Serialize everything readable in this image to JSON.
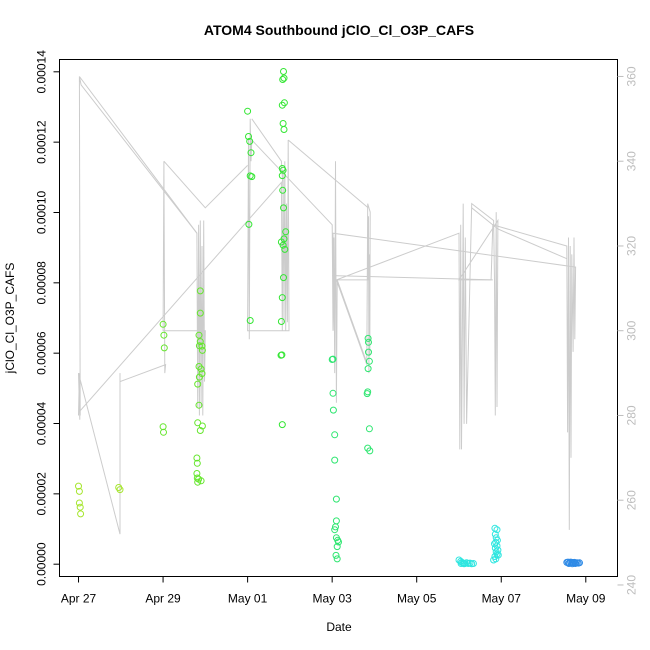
{
  "chart_data": {
    "type": "scatter",
    "title": "ATOM4 Southbound jClO_Cl_O3P_CAFS",
    "xlabel": "Date",
    "ylabel": "jClO_Cl_O3P_CAFS",
    "x_tick_labels": [
      "Apr 27",
      "Apr 29",
      "May 01",
      "May 03",
      "May 05",
      "May 07",
      "May 09"
    ],
    "x_tick_values": [
      0,
      2,
      4,
      6,
      8,
      10,
      12
    ],
    "xlim": [
      -0.45,
      12.75
    ],
    "ylim": [
      -3.5e-06,
      0.0001435
    ],
    "y_tick_labels": [
      "0.00000",
      "0.00002",
      "0.00004",
      "0.00006",
      "0.00008",
      "0.00010",
      "0.00012",
      "0.00014"
    ],
    "y_tick_values": [
      0,
      2e-05,
      4e-05,
      6e-05,
      8e-05,
      0.0001,
      0.00012,
      0.00014
    ],
    "y2lim": [
      242,
      364
    ],
    "y2_tick_labels": [
      "240",
      "260",
      "280",
      "300",
      "320",
      "340",
      "360"
    ],
    "y2_tick_values": [
      240,
      260,
      280,
      300,
      320,
      340,
      360
    ],
    "colors": {
      "line": "#cccccc",
      "axis": "#000000",
      "axis_right": "#bdbdbd"
    },
    "series": [
      {
        "color": "#a6e62e",
        "points": [
          [
            0.0,
            2.22e-05
          ],
          [
            0.02,
            2.07e-05
          ],
          [
            0.02,
            1.74e-05
          ],
          [
            0.04,
            1.62e-05
          ],
          [
            0.05,
            1.43e-05
          ],
          [
            0.95,
            2.18e-05
          ],
          [
            0.98,
            2.12e-05
          ]
        ]
      },
      {
        "color": "#66e62e",
        "points": [
          [
            2.0,
            6.82e-05
          ],
          [
            2.02,
            6.51e-05
          ],
          [
            2.03,
            6.15e-05
          ],
          [
            2.0,
            3.91e-05
          ],
          [
            2.01,
            3.75e-05
          ],
          [
            2.8,
            3.02e-05
          ],
          [
            2.81,
            2.87e-05
          ],
          [
            2.8,
            2.58e-05
          ],
          [
            2.81,
            2.45e-05
          ],
          [
            2.82,
            2.33e-05
          ],
          [
            2.84,
            2.42e-05
          ],
          [
            2.88,
            3.8e-05
          ],
          [
            2.93,
            3.93e-05
          ],
          [
            2.9,
            2.37e-05
          ],
          [
            2.82,
            4.02e-05
          ],
          [
            2.85,
            4.52e-05
          ],
          [
            2.82,
            5.12e-05
          ],
          [
            2.86,
            5.32e-05
          ],
          [
            2.85,
            5.62e-05
          ],
          [
            2.9,
            5.55e-05
          ],
          [
            2.92,
            5.42e-05
          ],
          [
            2.85,
            6.51e-05
          ],
          [
            2.88,
            6.33e-05
          ],
          [
            2.86,
            6.21e-05
          ],
          [
            2.92,
            6.2e-05
          ],
          [
            2.93,
            6.08e-05
          ],
          [
            2.88,
            7.14e-05
          ],
          [
            2.88,
            7.77e-05
          ]
        ]
      },
      {
        "color": "#33e633",
        "points": [
          [
            4.0,
            0.0001288
          ],
          [
            4.02,
            0.0001216
          ],
          [
            4.05,
            0.0001202
          ],
          [
            4.08,
            0.000117
          ],
          [
            4.06,
            0.0001104
          ],
          [
            4.1,
            0.0001102
          ],
          [
            4.03,
            9.66e-05
          ],
          [
            4.06,
            6.93e-05
          ],
          [
            4.85,
            0.0001401
          ],
          [
            4.83,
            0.0001378
          ],
          [
            4.86,
            0.0001382
          ],
          [
            4.87,
            0.0001312
          ],
          [
            4.82,
            0.0001305
          ],
          [
            4.84,
            0.0001253
          ],
          [
            4.86,
            0.0001236
          ],
          [
            4.82,
            0.0001125
          ],
          [
            4.84,
            0.000112
          ],
          [
            4.82,
            0.0001105
          ],
          [
            4.83,
            0.0001063
          ],
          [
            4.85,
            0.0001013
          ],
          [
            4.8,
            9.16e-05
          ],
          [
            4.84,
            9.07e-05
          ],
          [
            4.86,
            9.25e-05
          ],
          [
            4.9,
            9.45e-05
          ],
          [
            4.88,
            8.95e-05
          ],
          [
            4.85,
            8.15e-05
          ],
          [
            4.82,
            7.58e-05
          ],
          [
            4.8,
            6.9e-05
          ],
          [
            4.79,
            5.94e-05
          ],
          [
            4.81,
            5.95e-05
          ],
          [
            4.82,
            3.97e-05
          ]
        ]
      },
      {
        "color": "#2ee670",
        "points": [
          [
            6.0,
            5.82e-05
          ],
          [
            6.02,
            5.83e-05
          ],
          [
            6.02,
            4.86e-05
          ],
          [
            6.03,
            4.38e-05
          ],
          [
            6.06,
            3.68e-05
          ],
          [
            6.06,
            2.96e-05
          ],
          [
            6.1,
            1.85e-05
          ],
          [
            6.1,
            1.23e-05
          ],
          [
            6.08,
            1.06e-05
          ],
          [
            6.06,
            9.8e-06
          ],
          [
            6.1,
            7.5e-06
          ],
          [
            6.13,
            6.8e-06
          ],
          [
            6.15,
            6.3e-06
          ],
          [
            6.12,
            5e-06
          ],
          [
            6.09,
            2.5e-06
          ],
          [
            6.12,
            1.5e-06
          ],
          [
            6.85,
            6.42e-05
          ],
          [
            6.86,
            6.31e-05
          ],
          [
            6.86,
            6.03e-05
          ],
          [
            6.88,
            5.77e-05
          ],
          [
            6.85,
            5.56e-05
          ],
          [
            6.84,
            4.9e-05
          ],
          [
            6.83,
            4.85e-05
          ],
          [
            6.88,
            3.85e-05
          ],
          [
            6.84,
            3.3e-05
          ],
          [
            6.89,
            3.22e-05
          ]
        ]
      },
      {
        "color": "#2ee6e0",
        "points": [
          [
            9.0,
            1.2e-06
          ],
          [
            9.04,
            8e-07
          ],
          [
            9.07,
            5e-07
          ],
          [
            9.1,
            3e-07
          ],
          [
            9.14,
            2e-07
          ],
          [
            9.18,
            4e-07
          ],
          [
            9.22,
            2e-07
          ],
          [
            9.26,
            3e-07
          ],
          [
            9.3,
            1e-07
          ],
          [
            9.34,
            2e-07
          ],
          [
            9.05,
            2e-07
          ],
          [
            9.12,
            1e-07
          ],
          [
            9.85,
            1.02e-05
          ],
          [
            9.9,
            9.8e-06
          ],
          [
            9.86,
            8.5e-06
          ],
          [
            9.88,
            7.5e-06
          ],
          [
            9.91,
            6.8e-06
          ],
          [
            9.87,
            6.2e-06
          ],
          [
            9.84,
            5.8e-06
          ],
          [
            9.9,
            5.2e-06
          ],
          [
            9.86,
            4.6e-06
          ],
          [
            9.92,
            4e-06
          ],
          [
            9.88,
            3.5e-06
          ],
          [
            9.9,
            2.8e-06
          ],
          [
            9.85,
            2.2e-06
          ],
          [
            9.93,
            2.6e-06
          ],
          [
            9.87,
            1.5e-06
          ],
          [
            9.82,
            1.2e-06
          ]
        ]
      },
      {
        "color": "#2e8ae6",
        "points": [
          [
            11.55,
            5e-07
          ],
          [
            11.58,
            6e-07
          ],
          [
            11.61,
            4e-07
          ],
          [
            11.64,
            6e-07
          ],
          [
            11.67,
            5e-07
          ],
          [
            11.7,
            4e-07
          ],
          [
            11.73,
            5e-07
          ],
          [
            11.76,
            3e-07
          ],
          [
            11.79,
            4e-07
          ],
          [
            11.82,
            3e-07
          ],
          [
            11.85,
            4e-07
          ],
          [
            11.6,
            2e-07
          ],
          [
            11.68,
            1e-07
          ],
          [
            11.75,
            2e-07
          ]
        ]
      }
    ],
    "line_series": {
      "axis": "right",
      "points": [
        [
          0.0,
          280
        ],
        [
          0.02,
          290
        ],
        [
          0.04,
          280
        ],
        [
          0.02,
          360
        ],
        [
          0.06,
          358
        ],
        [
          2.8,
          323
        ],
        [
          2.82,
          282
        ],
        [
          2.84,
          325
        ],
        [
          2.86,
          280
        ],
        [
          2.88,
          326
        ],
        [
          2.9,
          282
        ],
        [
          2.92,
          320
        ],
        [
          2.94,
          280
        ],
        [
          2.96,
          326
        ],
        [
          2.98,
          288
        ],
        [
          3.0,
          300
        ],
        [
          2.0,
          300
        ],
        [
          2.02,
          340
        ],
        [
          2.04,
          290
        ],
        [
          2.06,
          292
        ],
        [
          0.98,
          288
        ],
        [
          0.98,
          290
        ],
        [
          0.98,
          252
        ],
        [
          0.0,
          290
        ],
        [
          0.03,
          279
        ],
        [
          0.03,
          281
        ],
        [
          4.8,
          335
        ],
        [
          4.82,
          300
        ],
        [
          4.84,
          338
        ],
        [
          4.86,
          302
        ],
        [
          4.88,
          340
        ],
        [
          4.9,
          300
        ],
        [
          4.92,
          330
        ],
        [
          4.94,
          302
        ],
        [
          4.96,
          345
        ],
        [
          4.98,
          300
        ],
        [
          4.0,
          300
        ],
        [
          4.02,
          345
        ],
        [
          4.04,
          298
        ],
        [
          4.06,
          350
        ],
        [
          4.08,
          340
        ],
        [
          4.1,
          345
        ],
        [
          6.0,
          325
        ],
        [
          6.02,
          300
        ],
        [
          6.04,
          322
        ],
        [
          6.06,
          290
        ],
        [
          6.08,
          340
        ],
        [
          6.1,
          283
        ],
        [
          6.12,
          312
        ],
        [
          6.85,
          312
        ],
        [
          6.86,
          327
        ],
        [
          6.87,
          290
        ],
        [
          6.88,
          318
        ],
        [
          6.89,
          294
        ],
        [
          6.9,
          328
        ],
        [
          6.84,
          330
        ],
        [
          6.82,
          292
        ],
        [
          6.1,
          312
        ],
        [
          9.0,
          323
        ],
        [
          9.02,
          272
        ],
        [
          9.04,
          325
        ],
        [
          9.06,
          272
        ],
        [
          9.08,
          300
        ],
        [
          9.1,
          330
        ],
        [
          9.12,
          278
        ],
        [
          9.15,
          322
        ],
        [
          9.18,
          278
        ],
        [
          9.3,
          330
        ],
        [
          9.82,
          326
        ],
        [
          9.84,
          312
        ],
        [
          9.86,
          280
        ],
        [
          9.88,
          328
        ],
        [
          9.9,
          282
        ],
        [
          9.92,
          326
        ],
        [
          9.0,
          312
        ],
        [
          9.76,
          312
        ],
        [
          9.8,
          325
        ],
        [
          11.55,
          320
        ],
        [
          11.57,
          276
        ],
        [
          11.59,
          322
        ],
        [
          11.61,
          253
        ],
        [
          11.63,
          320
        ],
        [
          11.65,
          270
        ],
        [
          11.67,
          318
        ],
        [
          11.7,
          295
        ],
        [
          11.72,
          322
        ],
        [
          11.74,
          298
        ],
        [
          11.76,
          315
        ],
        [
          6.02,
          323
        ],
        [
          6.05,
          300
        ]
      ]
    },
    "trend_segments": [
      {
        "points": [
          [
            0.02,
            360
          ],
          [
            2.8,
            323
          ]
        ]
      },
      {
        "points": [
          [
            2.02,
            340
          ],
          [
            3.0,
            329
          ],
          [
            4.0,
            339
          ]
        ]
      },
      {
        "points": [
          [
            4.1,
            350
          ],
          [
            4.8,
            340
          ],
          [
            4.84,
            333
          ]
        ]
      },
      {
        "points": [
          [
            4.96,
            345
          ],
          [
            6.85,
            329
          ]
        ]
      },
      {
        "points": [
          [
            6.0,
            313
          ],
          [
            9.8,
            312
          ]
        ]
      },
      {
        "points": [
          [
            9.3,
            329
          ],
          [
            9.92,
            324
          ],
          [
            11.55,
            317
          ]
        ]
      },
      {
        "points": [
          [
            6.12,
            312
          ],
          [
            6.8,
            293
          ]
        ]
      }
    ]
  }
}
